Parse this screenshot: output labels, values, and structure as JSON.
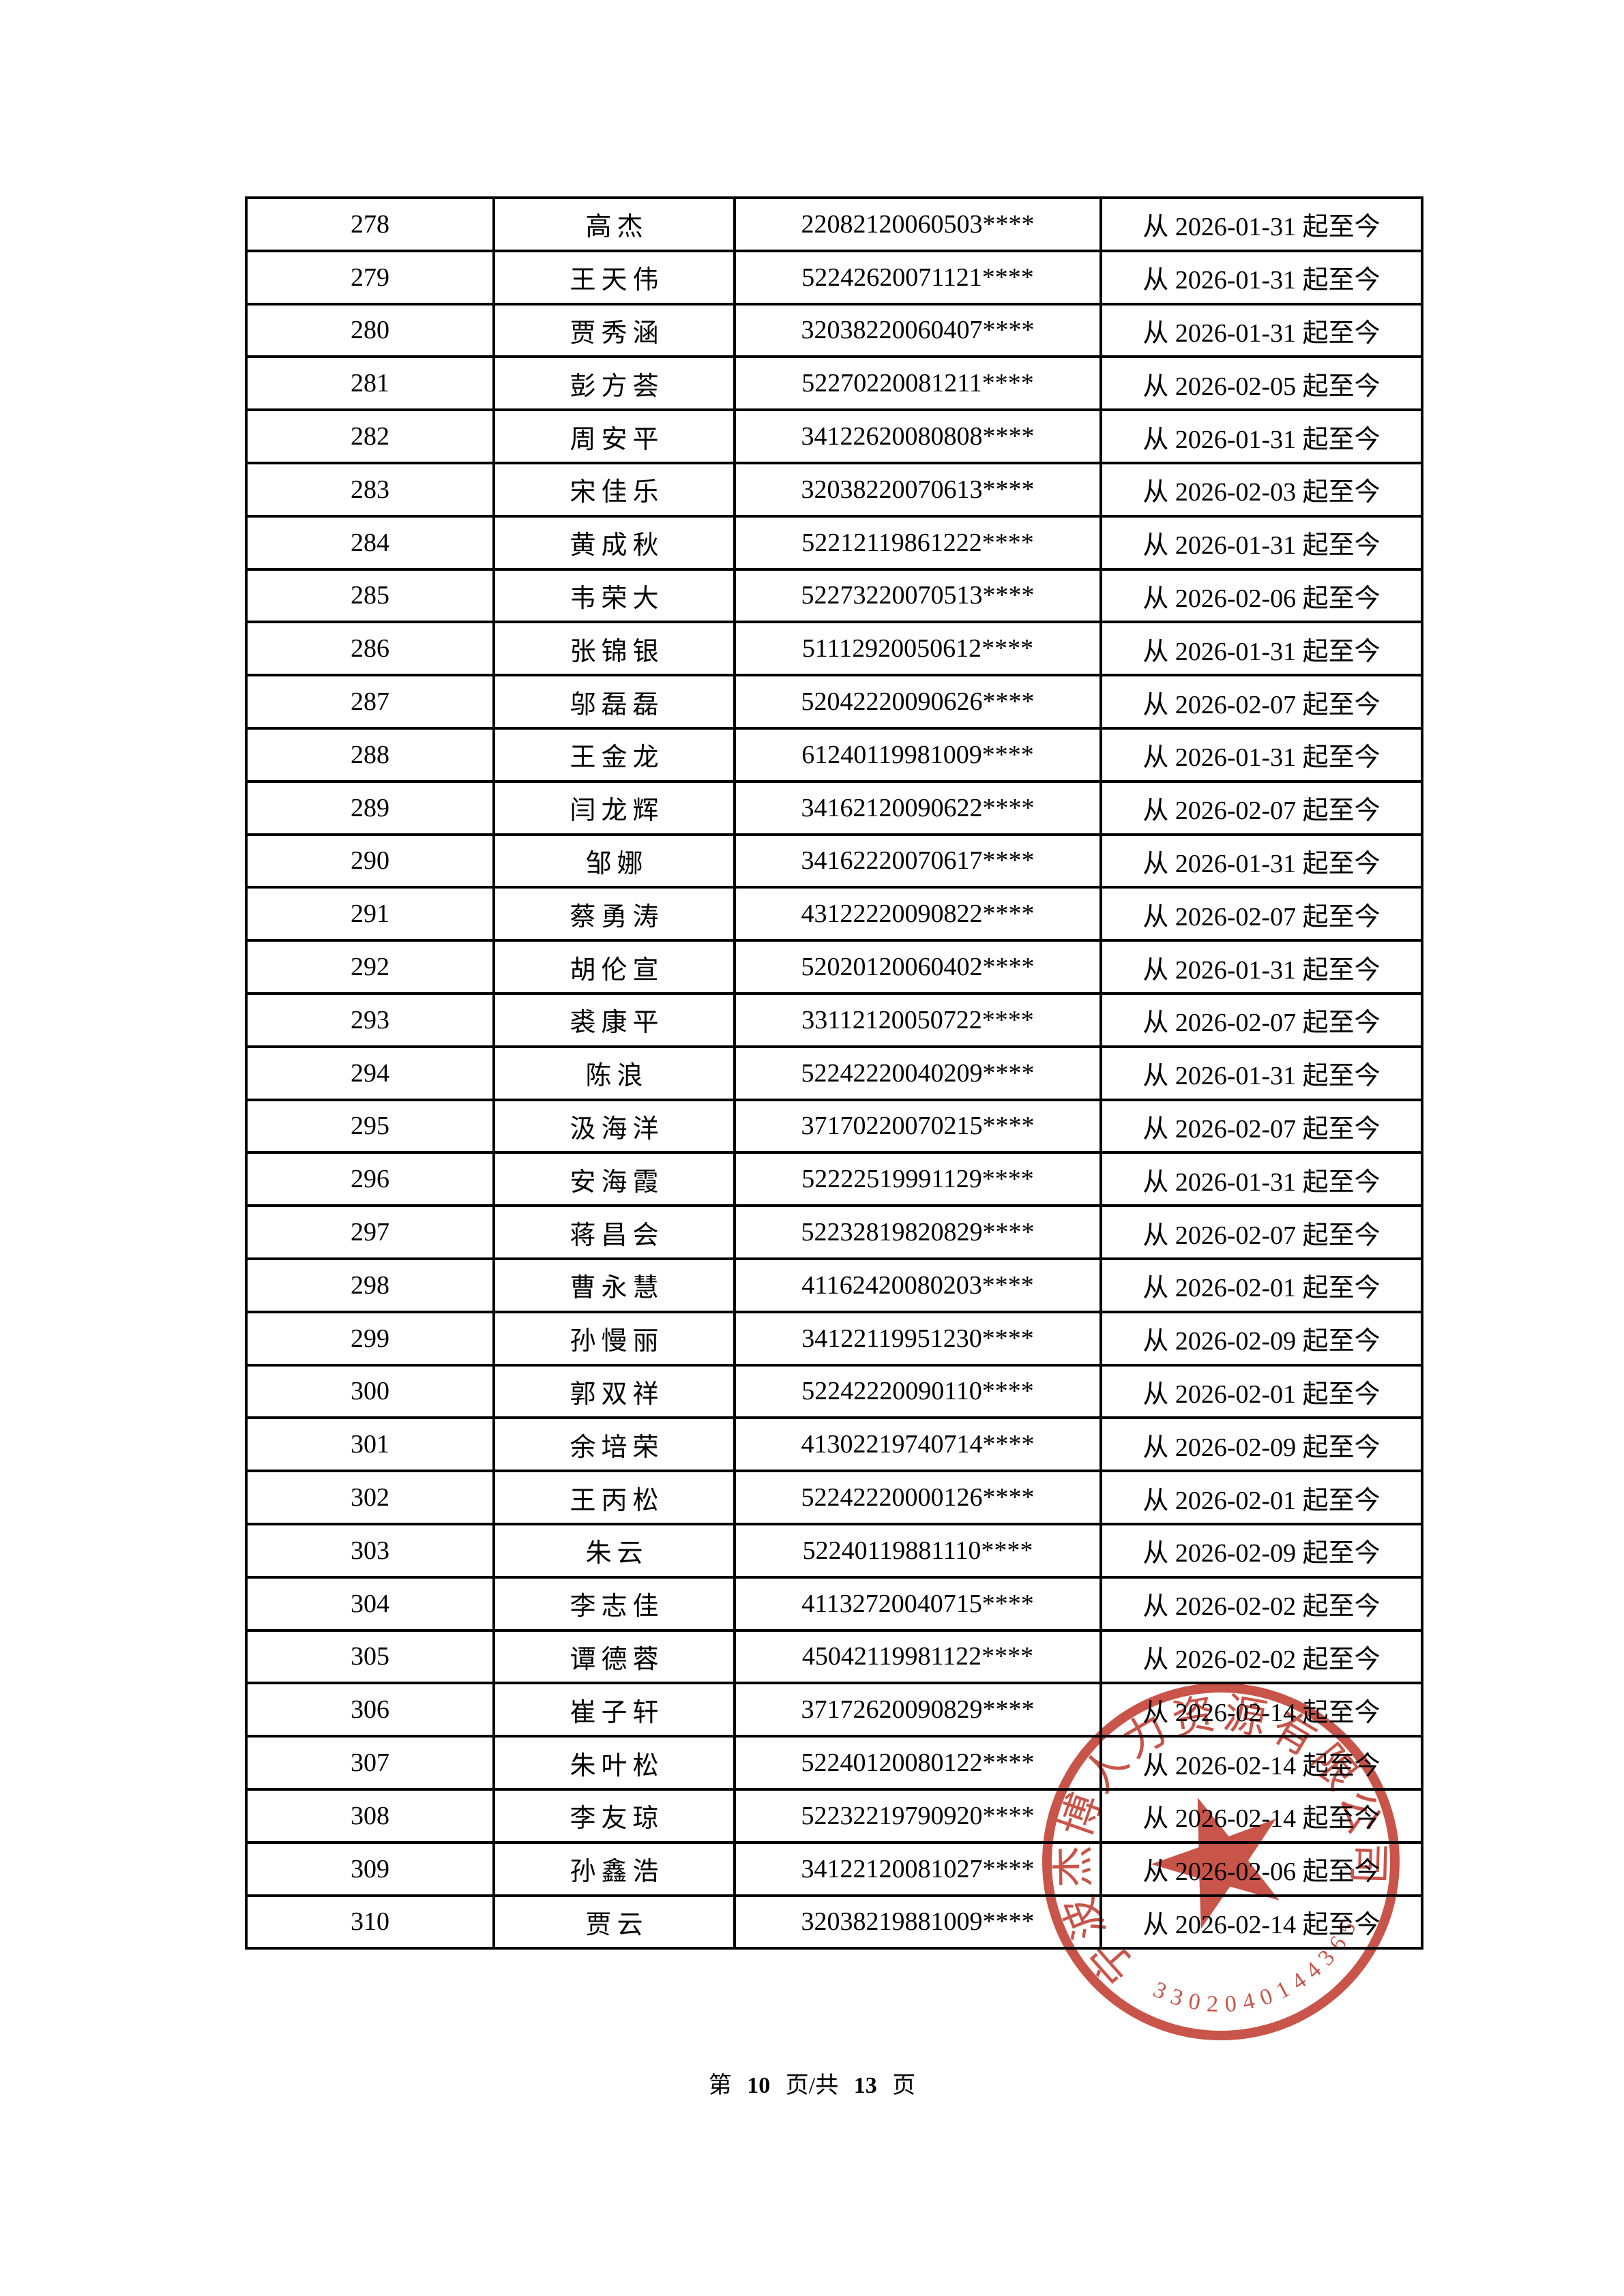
{
  "table": {
    "rows": [
      {
        "seq": "278",
        "name": "高杰",
        "id": "22082120060503****",
        "period": "从 2026-01-31 起至今"
      },
      {
        "seq": "279",
        "name": "王天伟",
        "id": "52242620071121****",
        "period": "从 2026-01-31 起至今"
      },
      {
        "seq": "280",
        "name": "贾秀涵",
        "id": "32038220060407****",
        "period": "从 2026-01-31 起至今"
      },
      {
        "seq": "281",
        "name": "彭方荟",
        "id": "52270220081211****",
        "period": "从 2026-02-05 起至今"
      },
      {
        "seq": "282",
        "name": "周安平",
        "id": "34122620080808****",
        "period": "从 2026-01-31 起至今"
      },
      {
        "seq": "283",
        "name": "宋佳乐",
        "id": "32038220070613****",
        "period": "从 2026-02-03 起至今"
      },
      {
        "seq": "284",
        "name": "黄成秋",
        "id": "52212119861222****",
        "period": "从 2026-01-31 起至今"
      },
      {
        "seq": "285",
        "name": "韦荣大",
        "id": "52273220070513****",
        "period": "从 2026-02-06 起至今"
      },
      {
        "seq": "286",
        "name": "张锦银",
        "id": "51112920050612****",
        "period": "从 2026-01-31 起至今"
      },
      {
        "seq": "287",
        "name": "邬磊磊",
        "id": "52042220090626****",
        "period": "从 2026-02-07 起至今"
      },
      {
        "seq": "288",
        "name": "王金龙",
        "id": "61240119981009****",
        "period": "从 2026-01-31 起至今"
      },
      {
        "seq": "289",
        "name": "闫龙辉",
        "id": "34162120090622****",
        "period": "从 2026-02-07 起至今"
      },
      {
        "seq": "290",
        "name": "邹娜",
        "id": "34162220070617****",
        "period": "从 2026-01-31 起至今"
      },
      {
        "seq": "291",
        "name": "蔡勇涛",
        "id": "43122220090822****",
        "period": "从 2026-02-07 起至今"
      },
      {
        "seq": "292",
        "name": "胡伦宣",
        "id": "52020120060402****",
        "period": "从 2026-01-31 起至今"
      },
      {
        "seq": "293",
        "name": "裘康平",
        "id": "33112120050722****",
        "period": "从 2026-02-07 起至今"
      },
      {
        "seq": "294",
        "name": "陈浪",
        "id": "52242220040209****",
        "period": "从 2026-01-31 起至今"
      },
      {
        "seq": "295",
        "name": "汲海洋",
        "id": "37170220070215****",
        "period": "从 2026-02-07 起至今"
      },
      {
        "seq": "296",
        "name": "安海霞",
        "id": "52222519991129****",
        "period": "从 2026-01-31 起至今"
      },
      {
        "seq": "297",
        "name": "蒋昌会",
        "id": "52232819820829****",
        "period": "从 2026-02-07 起至今"
      },
      {
        "seq": "298",
        "name": "曹永慧",
        "id": "41162420080203****",
        "period": "从 2026-02-01 起至今"
      },
      {
        "seq": "299",
        "name": "孙慢丽",
        "id": "34122119951230****",
        "period": "从 2026-02-09 起至今"
      },
      {
        "seq": "300",
        "name": "郭双祥",
        "id": "52242220090110****",
        "period": "从 2026-02-01 起至今"
      },
      {
        "seq": "301",
        "name": "余培荣",
        "id": "41302219740714****",
        "period": "从 2026-02-09 起至今"
      },
      {
        "seq": "302",
        "name": "王丙松",
        "id": "52242220000126****",
        "period": "从 2026-02-01 起至今"
      },
      {
        "seq": "303",
        "name": "朱云",
        "id": "52240119881110****",
        "period": "从 2026-02-09 起至今"
      },
      {
        "seq": "304",
        "name": "李志佳",
        "id": "41132720040715****",
        "period": "从 2026-02-02 起至今"
      },
      {
        "seq": "305",
        "name": "谭德蓉",
        "id": "45042119981122****",
        "period": "从 2026-02-02 起至今"
      },
      {
        "seq": "306",
        "name": "崔子轩",
        "id": "37172620090829****",
        "period": "从 2026-02-14 起至今"
      },
      {
        "seq": "307",
        "name": "朱叶松",
        "id": "52240120080122****",
        "period": "从 2026-02-14 起至今"
      },
      {
        "seq": "308",
        "name": "李友琼",
        "id": "52232219790920****",
        "period": "从 2026-02-14 起至今"
      },
      {
        "seq": "309",
        "name": "孙鑫浩",
        "id": "34122120081027****",
        "period": "从 2026-02-06 起至今"
      },
      {
        "seq": "310",
        "name": "贾云",
        "id": "32038219881009****",
        "period": "从 2026-02-14 起至今"
      }
    ]
  },
  "footer": {
    "label_start": "第",
    "page_number": "10",
    "label_middle": "页/共",
    "total_pages": "13",
    "label_end": "页"
  },
  "stamp": {
    "company": "宁波杰博人力资源有限公司",
    "code": "3302040144365",
    "ink_color": "#c0372b"
  }
}
